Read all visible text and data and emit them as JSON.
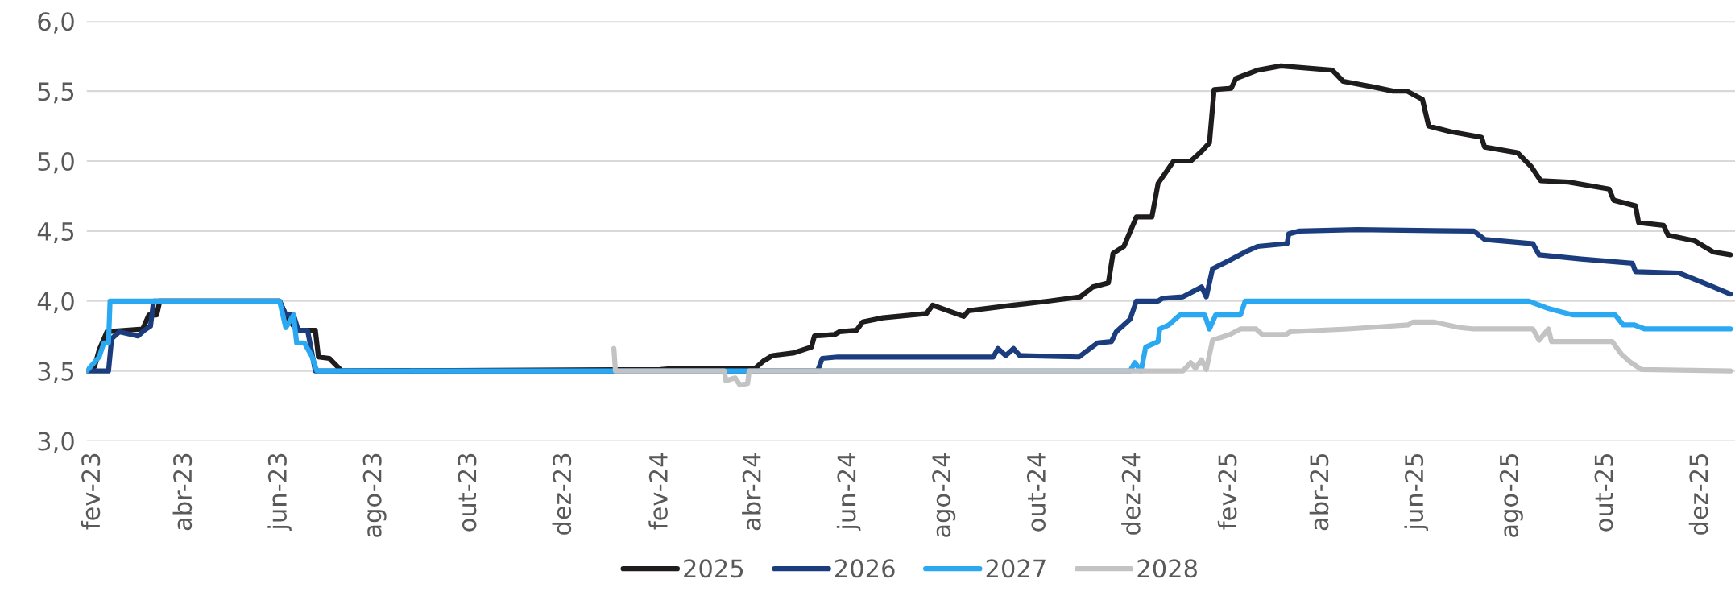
{
  "chart_data": {
    "type": "line",
    "xlim": [
      "2023-01-28",
      "2025-12-23"
    ],
    "xticks": [
      {
        "value": "2023-02-01",
        "label": "fev-23"
      },
      {
        "value": "2023-04-01",
        "label": "abr-23"
      },
      {
        "value": "2023-06-01",
        "label": "jun-23"
      },
      {
        "value": "2023-08-01",
        "label": "ago-23"
      },
      {
        "value": "2023-10-01",
        "label": "out-23"
      },
      {
        "value": "2023-12-01",
        "label": "dez-23"
      },
      {
        "value": "2024-02-01",
        "label": "fev-24"
      },
      {
        "value": "2024-04-01",
        "label": "abr-24"
      },
      {
        "value": "2024-06-01",
        "label": "jun-24"
      },
      {
        "value": "2024-08-01",
        "label": "ago-24"
      },
      {
        "value": "2024-10-01",
        "label": "out-24"
      },
      {
        "value": "2024-12-01",
        "label": "dez-24"
      },
      {
        "value": "2025-02-01",
        "label": "fev-25"
      },
      {
        "value": "2025-04-01",
        "label": "abr-25"
      },
      {
        "value": "2025-06-01",
        "label": "jun-25"
      },
      {
        "value": "2025-08-01",
        "label": "ago-25"
      },
      {
        "value": "2025-10-01",
        "label": "out-25"
      },
      {
        "value": "2025-12-01",
        "label": "dez-25"
      }
    ],
    "ylim": [
      3.0,
      6.0
    ],
    "yticks": [
      {
        "value": 3.0,
        "label": "3,0"
      },
      {
        "value": 3.5,
        "label": "3,5"
      },
      {
        "value": 4.0,
        "label": "4,0"
      },
      {
        "value": 4.5,
        "label": "4,5"
      },
      {
        "value": 5.0,
        "label": "5,0"
      },
      {
        "value": 5.5,
        "label": "5,5"
      },
      {
        "value": 6.0,
        "label": "6,0"
      }
    ],
    "grid": "y",
    "legend": "bottom",
    "marker": "none",
    "line_style": "solid",
    "series": [
      {
        "name": "2025",
        "color": "#1e1c1c",
        "x": [
          "2023-01-28",
          "2023-02-02",
          "2023-02-05",
          "2023-02-10",
          "2023-03-05",
          "2023-03-09",
          "2023-03-14",
          "2023-03-16",
          "2023-06-01",
          "2023-06-05",
          "2023-06-12",
          "2023-06-24",
          "2023-06-26",
          "2023-07-03",
          "2023-07-11",
          "2024-02-01",
          "2024-02-12",
          "2024-04-02",
          "2024-04-07",
          "2024-04-13",
          "2024-04-27",
          "2024-05-08",
          "2024-05-10",
          "2024-05-23",
          "2024-05-26",
          "2024-06-06",
          "2024-06-10",
          "2024-06-23",
          "2024-07-21",
          "2024-07-25",
          "2024-08-14",
          "2024-08-17",
          "2024-09-15",
          "2024-10-08",
          "2024-10-28",
          "2024-11-05",
          "2024-11-15",
          "2024-11-18",
          "2024-11-25",
          "2024-12-03",
          "2024-12-13",
          "2024-12-17",
          "2024-12-27",
          "2025-01-07",
          "2025-01-14",
          "2025-01-19",
          "2025-01-22",
          "2025-02-02",
          "2025-02-05",
          "2025-02-19",
          "2025-03-06",
          "2025-04-08",
          "2025-04-15",
          "2025-05-04",
          "2025-05-17",
          "2025-05-26",
          "2025-06-05",
          "2025-06-09",
          "2025-06-23",
          "2025-07-13",
          "2025-07-15",
          "2025-08-05",
          "2025-08-14",
          "2025-08-20",
          "2025-09-07",
          "2025-10-03",
          "2025-10-06",
          "2025-10-20",
          "2025-10-22",
          "2025-11-07",
          "2025-11-10",
          "2025-11-27",
          "2025-12-09",
          "2025-12-20"
        ],
        "values": [
          3.5,
          3.53,
          3.65,
          3.78,
          3.8,
          3.9,
          3.9,
          4.0,
          4.0,
          3.9,
          3.79,
          3.79,
          3.6,
          3.59,
          3.5,
          3.51,
          3.52,
          3.52,
          3.57,
          3.61,
          3.63,
          3.67,
          3.75,
          3.76,
          3.78,
          3.79,
          3.85,
          3.88,
          3.91,
          3.97,
          3.89,
          3.93,
          3.97,
          4.0,
          4.03,
          4.1,
          4.13,
          4.34,
          4.39,
          4.6,
          4.6,
          4.84,
          5.0,
          5.0,
          5.07,
          5.13,
          5.51,
          5.52,
          5.59,
          5.65,
          5.68,
          5.65,
          5.57,
          5.53,
          5.5,
          5.5,
          5.44,
          5.25,
          5.21,
          5.17,
          5.1,
          5.06,
          4.96,
          4.86,
          4.85,
          4.8,
          4.72,
          4.68,
          4.56,
          4.54,
          4.47,
          4.43,
          4.35,
          4.33
        ]
      },
      {
        "name": "2026",
        "color": "#1b3d7e",
        "x": [
          "2023-01-28",
          "2023-02-11",
          "2023-02-13",
          "2023-02-18",
          "2023-03-02",
          "2023-03-06",
          "2023-03-10",
          "2023-03-12",
          "2023-06-01",
          "2023-06-05",
          "2023-06-10",
          "2023-06-13",
          "2023-06-19",
          "2023-06-24",
          "2024-05-12",
          "2024-05-15",
          "2024-05-25",
          "2024-06-26",
          "2024-09-02",
          "2024-09-05",
          "2024-09-10",
          "2024-09-15",
          "2024-09-19",
          "2024-10-27",
          "2024-11-08",
          "2024-11-17",
          "2024-11-20",
          "2024-11-29",
          "2024-12-03",
          "2024-12-17",
          "2024-12-20",
          "2025-01-02",
          "2025-01-14",
          "2025-01-17",
          "2025-01-21",
          "2025-01-30",
          "2025-02-11",
          "2025-02-19",
          "2025-03-10",
          "2025-03-11",
          "2025-03-18",
          "2025-04-24",
          "2025-07-08",
          "2025-07-15",
          "2025-08-15",
          "2025-08-19",
          "2025-09-15",
          "2025-10-18",
          "2025-10-20",
          "2025-11-17",
          "2025-12-07",
          "2025-12-20"
        ],
        "values": [
          3.5,
          3.5,
          3.73,
          3.78,
          3.75,
          3.79,
          3.82,
          4.0,
          4.0,
          3.9,
          3.9,
          3.79,
          3.79,
          3.5,
          3.5,
          3.59,
          3.6,
          3.6,
          3.6,
          3.66,
          3.61,
          3.66,
          3.61,
          3.6,
          3.7,
          3.71,
          3.78,
          3.87,
          4.0,
          4.0,
          4.02,
          4.03,
          4.1,
          4.03,
          4.23,
          4.28,
          4.35,
          4.39,
          4.41,
          4.48,
          4.5,
          4.51,
          4.5,
          4.44,
          4.41,
          4.33,
          4.3,
          4.27,
          4.21,
          4.2,
          4.11,
          4.05
        ]
      },
      {
        "name": "2027",
        "color": "#2aa8f2",
        "x": [
          "2023-01-28",
          "2023-02-05",
          "2023-02-08",
          "2023-02-11",
          "2023-02-12",
          "2023-06-01",
          "2023-06-05",
          "2023-06-10",
          "2023-06-12",
          "2023-06-17",
          "2023-06-22",
          "2023-06-25",
          "2024-11-29",
          "2024-12-02",
          "2024-12-06",
          "2024-12-09",
          "2024-12-17",
          "2024-12-18",
          "2024-12-24",
          "2024-12-31",
          "2025-01-16",
          "2025-01-19",
          "2025-01-23",
          "2025-02-08",
          "2025-02-11",
          "2025-08-12",
          "2025-08-24",
          "2025-09-03",
          "2025-09-10",
          "2025-10-07",
          "2025-10-12",
          "2025-10-19",
          "2025-10-26",
          "2025-12-20"
        ],
        "values": [
          3.5,
          3.6,
          3.7,
          3.7,
          4.0,
          4.0,
          3.81,
          3.9,
          3.7,
          3.7,
          3.6,
          3.5,
          3.5,
          3.56,
          3.5,
          3.67,
          3.71,
          3.8,
          3.83,
          3.9,
          3.9,
          3.8,
          3.9,
          3.9,
          4.0,
          4.0,
          3.95,
          3.92,
          3.9,
          3.9,
          3.83,
          3.83,
          3.8,
          3.8
        ]
      },
      {
        "name": "2028",
        "color": "#c3c3c3",
        "x": [
          "2024-01-02",
          "2024-01-03",
          "2024-03-13",
          "2024-03-14",
          "2024-03-20",
          "2024-03-23",
          "2024-03-28",
          "2024-03-29",
          "2025-01-02",
          "2025-01-07",
          "2025-01-10",
          "2025-01-14",
          "2025-01-17",
          "2025-01-21",
          "2025-02-01",
          "2025-02-08",
          "2025-02-18",
          "2025-02-22",
          "2025-03-09",
          "2025-03-12",
          "2025-04-18",
          "2025-05-27",
          "2025-05-30",
          "2025-06-12",
          "2025-06-29",
          "2025-07-08",
          "2025-08-15",
          "2025-08-19",
          "2025-08-25",
          "2025-08-27",
          "2025-10-05",
          "2025-10-11",
          "2025-10-17",
          "2025-10-24",
          "2025-12-20"
        ],
        "values": [
          3.66,
          3.5,
          3.5,
          3.43,
          3.45,
          3.4,
          3.41,
          3.5,
          3.5,
          3.56,
          3.52,
          3.58,
          3.51,
          3.72,
          3.76,
          3.8,
          3.8,
          3.76,
          3.76,
          3.78,
          3.8,
          3.83,
          3.85,
          3.85,
          3.81,
          3.8,
          3.8,
          3.72,
          3.8,
          3.71,
          3.71,
          3.62,
          3.56,
          3.51,
          3.5
        ]
      }
    ]
  }
}
